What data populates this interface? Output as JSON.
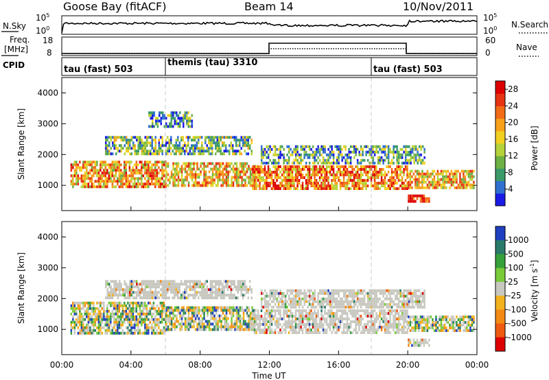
{
  "header": {
    "station": "Goose Bay (fitACF)",
    "beam": "Beam 14",
    "date": "10/Nov/2011"
  },
  "noise_panel": {
    "left_label": "N.Sky",
    "left_ticks": [
      "10^5",
      "10^0"
    ],
    "right_label": "N.Search",
    "right_ticks": [
      "10^5",
      "10^0"
    ]
  },
  "freq_panel": {
    "left_label_1": "Freq.",
    "left_label_2": "[MHz]",
    "left_ticks": [
      "18",
      "8"
    ],
    "right_label": "Nave",
    "right_ticks": [
      "60",
      "0"
    ]
  },
  "cpid_panel": {
    "label": "CPID",
    "modes": [
      {
        "label": "tau (fast) 503",
        "start_hour": 0
      },
      {
        "label": "themis (tau) 3310",
        "start_hour": 6
      },
      {
        "label": "tau (fast) 503",
        "start_hour": 18
      }
    ]
  },
  "chart_data": [
    {
      "type": "heatmap",
      "title": "",
      "xlabel": "Time UT",
      "ylabel": "Slant Range [km]",
      "x_ticks": [
        "00:00",
        "04:00",
        "08:00",
        "12:00",
        "16:00",
        "20:00",
        "00:00"
      ],
      "xlim_hours": [
        0,
        24
      ],
      "ylim_km": [
        180,
        4500
      ],
      "y_ticks": [
        1000,
        2000,
        3000,
        4000
      ],
      "colorbar": {
        "label": "Power [dB]",
        "ticks": [
          4,
          8,
          12,
          16,
          20,
          24,
          28
        ],
        "range": [
          0,
          30
        ],
        "colors": [
          "#1a1ae6",
          "#2f6fd0",
          "#3b9a6a",
          "#6db043",
          "#b5d23a",
          "#f2d020",
          "#f7a11a",
          "#f26b16",
          "#e63312",
          "#dd0000"
        ]
      },
      "echo_bands": [
        {
          "t0": 0.5,
          "t1": 6.0,
          "r0": 950,
          "r1": 1800,
          "level": 0.65
        },
        {
          "t0": 6.0,
          "t1": 11.2,
          "r0": 1000,
          "r1": 1750,
          "level": 0.6
        },
        {
          "t0": 11.0,
          "t1": 20.0,
          "r0": 900,
          "r1": 1650,
          "level": 0.72
        },
        {
          "t0": 20.0,
          "t1": 23.8,
          "r0": 950,
          "r1": 1500,
          "level": 0.6
        },
        {
          "t0": 2.5,
          "t1": 11.0,
          "r0": 2000,
          "r1": 2600,
          "level": 0.35
        },
        {
          "t0": 11.5,
          "t1": 21.0,
          "r0": 1700,
          "r1": 2300,
          "level": 0.3
        },
        {
          "t0": 5.0,
          "t1": 7.5,
          "r0": 2900,
          "r1": 3400,
          "level": 0.25
        },
        {
          "t0": 20.0,
          "t1": 21.2,
          "r0": 450,
          "r1": 700,
          "level": 0.9
        }
      ]
    },
    {
      "type": "heatmap",
      "title": "",
      "xlabel": "Time UT",
      "ylabel": "Slant Range [km]",
      "x_ticks": [
        "00:00",
        "04:00",
        "08:00",
        "12:00",
        "16:00",
        "20:00",
        "00:00"
      ],
      "xlim_hours": [
        0,
        24
      ],
      "ylim_km": [
        180,
        4500
      ],
      "y_ticks": [
        1000,
        2000,
        3000,
        4000
      ],
      "colorbar": {
        "label": "Velocity [m s^-1]",
        "tick_labels": [
          "1000",
          "500",
          "100",
          "25",
          "-25",
          "-100",
          "-500",
          "-1000"
        ],
        "colors": [
          "#1e3fbf",
          "#2a7a6a",
          "#36a03a",
          "#7acb3a",
          "#c8c8c0",
          "#f2b21e",
          "#f28a14",
          "#ee5a10",
          "#dd0000"
        ]
      },
      "echo_bands": [
        {
          "t0": 0.5,
          "t1": 6.0,
          "r0": 900,
          "r1": 1900,
          "vclass": "mixed"
        },
        {
          "t0": 6.0,
          "t1": 11.2,
          "r0": 1000,
          "r1": 1750,
          "vclass": "mixed"
        },
        {
          "t0": 11.0,
          "t1": 20.0,
          "r0": 900,
          "r1": 1650,
          "vclass": "ground"
        },
        {
          "t0": 20.0,
          "t1": 23.8,
          "r0": 950,
          "r1": 1450,
          "vclass": "mixed"
        },
        {
          "t0": 2.5,
          "t1": 11.0,
          "r0": 2000,
          "r1": 2600,
          "vclass": "ground"
        },
        {
          "t0": 11.5,
          "t1": 21.0,
          "r0": 1700,
          "r1": 2300,
          "vclass": "ground"
        },
        {
          "t0": 20.0,
          "t1": 21.2,
          "r0": 450,
          "r1": 700,
          "vclass": "ground"
        }
      ]
    }
  ]
}
